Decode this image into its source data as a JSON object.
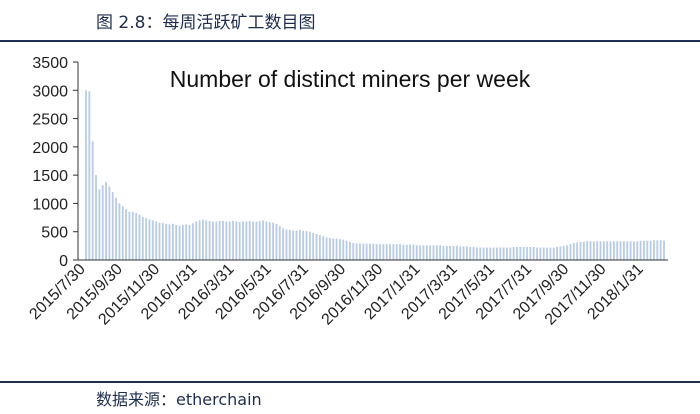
{
  "header": {
    "figure_title": "图 2.8：每周活跃矿工数目图"
  },
  "footer": {
    "source": "数据来源：etherchain"
  },
  "chart_data": {
    "type": "bar",
    "title": "Number of distinct miners per week",
    "xlabel": "",
    "ylabel": "",
    "ylim": [
      0,
      3500
    ],
    "yticks": [
      0,
      500,
      1000,
      1500,
      2000,
      2500,
      3000,
      3500
    ],
    "grid": false,
    "legend": "none",
    "bar_color": "#b9cbe6",
    "x_tick_labels": [
      "2015/7/30",
      "2015/9/30",
      "2015/11/30",
      "2016/1/31",
      "2016/3/31",
      "2016/5/31",
      "2016/7/31",
      "2016/9/30",
      "2016/11/30",
      "2017/1/31",
      "2017/3/31",
      "2017/5/31",
      "2017/7/31",
      "2017/9/30",
      "2017/11/30",
      "2018/1/31"
    ],
    "weekly_values": [
      3000,
      2980,
      2100,
      1500,
      1250,
      1320,
      1380,
      1300,
      1200,
      1100,
      1000,
      950,
      900,
      850,
      850,
      830,
      800,
      760,
      740,
      720,
      700,
      680,
      660,
      650,
      640,
      630,
      640,
      620,
      610,
      620,
      630,
      620,
      650,
      680,
      700,
      710,
      700,
      690,
      680,
      680,
      690,
      690,
      680,
      680,
      690,
      680,
      670,
      680,
      680,
      690,
      680,
      680,
      690,
      700,
      680,
      670,
      660,
      640,
      600,
      560,
      540,
      530,
      520,
      520,
      530,
      520,
      510,
      500,
      480,
      460,
      440,
      420,
      400,
      390,
      380,
      380,
      370,
      360,
      340,
      320,
      300,
      290,
      290,
      290,
      290,
      290,
      290,
      280,
      280,
      280,
      280,
      280,
      280,
      280,
      280,
      270,
      270,
      270,
      270,
      260,
      260,
      260,
      260,
      260,
      260,
      260,
      260,
      250,
      250,
      250,
      250,
      250,
      240,
      240,
      240,
      230,
      230,
      220,
      220,
      220,
      220,
      220,
      220,
      220,
      220,
      220,
      220,
      220,
      230,
      230,
      230,
      230,
      230,
      230,
      230,
      220,
      220,
      220,
      220,
      220,
      220,
      230,
      240,
      250,
      260,
      280,
      300,
      310,
      320,
      320,
      330,
      330,
      330,
      330,
      330,
      330,
      330,
      330,
      330,
      330,
      330,
      330,
      330,
      330,
      330,
      330,
      340,
      340,
      340,
      340,
      350,
      350,
      350,
      340
    ]
  }
}
